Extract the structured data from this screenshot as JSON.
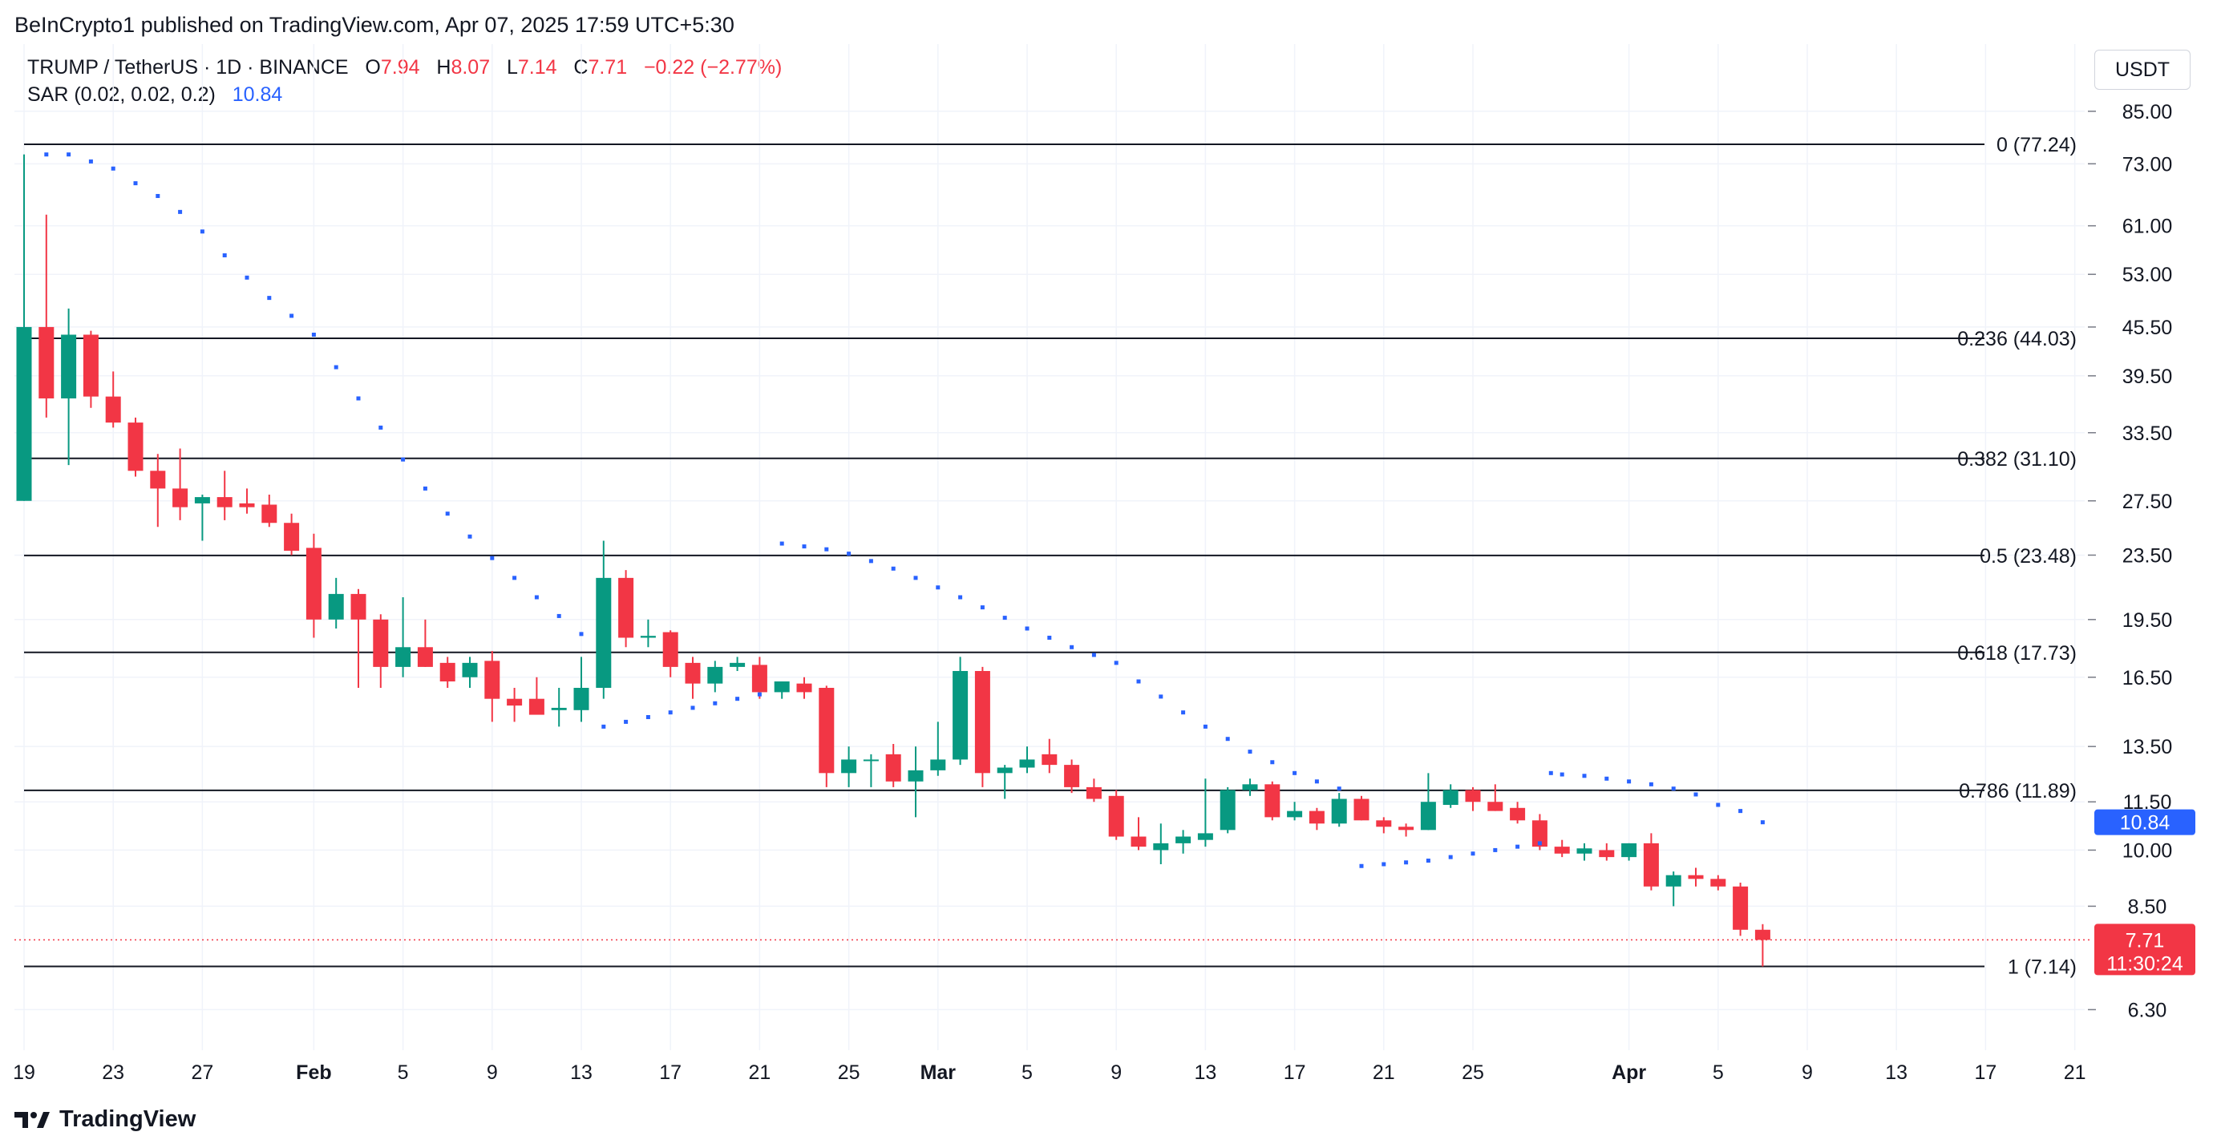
{
  "header": {
    "published": "BeInCrypto1 published on TradingView.com, Apr 07, 2025 17:59 UTC+5:30"
  },
  "legend": {
    "symbol": "TRUMP / TetherUS · 1D · BINANCE",
    "o_label": "O",
    "o_value": "7.94",
    "h_label": "H",
    "h_value": "8.07",
    "l_label": "L",
    "l_value": "7.14",
    "c_label": "C",
    "c_value": "7.71",
    "change": "−0.22 (−2.77%)",
    "sar_label": "SAR (0.02, 0.02, 0.2)",
    "sar_value": "10.84"
  },
  "currency": "USDT",
  "footer": {
    "brand": "TradingView"
  },
  "colors": {
    "up": "#089981",
    "down": "#f23645",
    "sar": "#2962ff",
    "fib_line": "#131722",
    "grid": "#f0f3fa",
    "text": "#131722",
    "last_price_bg": "#f23645",
    "sar_label_bg": "#2962ff"
  },
  "chart_data": {
    "type": "candlestick",
    "title": "TRUMP / TetherUS · 1D · BINANCE",
    "y_scale": "log",
    "ylim": [
      5.9,
      95
    ],
    "grid": true,
    "y_ticks": [
      85.0,
      73.0,
      61.0,
      53.0,
      45.5,
      39.5,
      33.5,
      27.5,
      23.5,
      19.5,
      16.5,
      13.5,
      11.5,
      10.0,
      8.5,
      6.3
    ],
    "y_tick_labels": [
      "85.00",
      "73.00",
      "61.00",
      "53.00",
      "45.50",
      "39.50",
      "33.50",
      "27.50",
      "23.50",
      "19.50",
      "16.50",
      "13.50",
      "11.50",
      "10.00",
      "8.50",
      "6.30"
    ],
    "x_ticks": [
      {
        "i": 0,
        "label": "19"
      },
      {
        "i": 4,
        "label": "23"
      },
      {
        "i": 8,
        "label": "27"
      },
      {
        "i": 13,
        "label": "Feb"
      },
      {
        "i": 17,
        "label": "5"
      },
      {
        "i": 21,
        "label": "9"
      },
      {
        "i": 25,
        "label": "13"
      },
      {
        "i": 29,
        "label": "17"
      },
      {
        "i": 33,
        "label": "21"
      },
      {
        "i": 37,
        "label": "25"
      },
      {
        "i": 41,
        "label": "Mar"
      },
      {
        "i": 45,
        "label": "5"
      },
      {
        "i": 49,
        "label": "9"
      },
      {
        "i": 53,
        "label": "13"
      },
      {
        "i": 57,
        "label": "17"
      },
      {
        "i": 61,
        "label": "21"
      },
      {
        "i": 65,
        "label": "25"
      },
      {
        "i": 72,
        "label": "Apr"
      },
      {
        "i": 76,
        "label": "5"
      },
      {
        "i": 80,
        "label": "9"
      },
      {
        "i": 84,
        "label": "13"
      },
      {
        "i": 88,
        "label": "17"
      },
      {
        "i": 92,
        "label": "21"
      }
    ],
    "candles": [
      {
        "o": 27.5,
        "h": 75.0,
        "l": 27.5,
        "c": 45.5
      },
      {
        "o": 45.5,
        "h": 63.0,
        "l": 35.0,
        "c": 37.0
      },
      {
        "o": 37.0,
        "h": 48.0,
        "l": 30.5,
        "c": 44.5
      },
      {
        "o": 44.5,
        "h": 45.0,
        "l": 36.0,
        "c": 37.2
      },
      {
        "o": 37.2,
        "h": 40.0,
        "l": 34.0,
        "c": 34.5
      },
      {
        "o": 34.5,
        "h": 35.0,
        "l": 29.5,
        "c": 30.0
      },
      {
        "o": 30.0,
        "h": 31.5,
        "l": 25.5,
        "c": 28.5
      },
      {
        "o": 28.5,
        "h": 32.0,
        "l": 26.0,
        "c": 27.0
      },
      {
        "o": 27.3,
        "h": 28.0,
        "l": 24.5,
        "c": 27.8
      },
      {
        "o": 27.8,
        "h": 30.0,
        "l": 26.0,
        "c": 27.0
      },
      {
        "o": 27.3,
        "h": 28.5,
        "l": 26.5,
        "c": 27.0
      },
      {
        "o": 27.2,
        "h": 28.0,
        "l": 25.5,
        "c": 25.8
      },
      {
        "o": 25.8,
        "h": 26.5,
        "l": 23.5,
        "c": 23.8
      },
      {
        "o": 24.0,
        "h": 25.0,
        "l": 18.5,
        "c": 19.5
      },
      {
        "o": 19.5,
        "h": 22.0,
        "l": 19.0,
        "c": 21.0
      },
      {
        "o": 21.0,
        "h": 21.3,
        "l": 16.0,
        "c": 19.5
      },
      {
        "o": 19.5,
        "h": 19.8,
        "l": 16.0,
        "c": 17.0
      },
      {
        "o": 17.0,
        "h": 20.8,
        "l": 16.5,
        "c": 18.0
      },
      {
        "o": 18.0,
        "h": 19.5,
        "l": 17.0,
        "c": 17.0
      },
      {
        "o": 17.2,
        "h": 17.5,
        "l": 16.0,
        "c": 16.3
      },
      {
        "o": 16.5,
        "h": 17.5,
        "l": 16.0,
        "c": 17.2
      },
      {
        "o": 17.3,
        "h": 17.8,
        "l": 14.5,
        "c": 15.5
      },
      {
        "o": 15.5,
        "h": 16.0,
        "l": 14.5,
        "c": 15.2
      },
      {
        "o": 15.5,
        "h": 16.5,
        "l": 15.0,
        "c": 14.8
      },
      {
        "o": 15.0,
        "h": 16.0,
        "l": 14.3,
        "c": 15.1
      },
      {
        "o": 15.0,
        "h": 17.5,
        "l": 14.5,
        "c": 16.0
      },
      {
        "o": 16.0,
        "h": 24.5,
        "l": 15.5,
        "c": 22.0
      },
      {
        "o": 22.0,
        "h": 22.5,
        "l": 18.0,
        "c": 18.5
      },
      {
        "o": 18.5,
        "h": 19.5,
        "l": 18.0,
        "c": 18.6
      },
      {
        "o": 18.8,
        "h": 18.9,
        "l": 16.5,
        "c": 17.0
      },
      {
        "o": 17.2,
        "h": 17.5,
        "l": 15.5,
        "c": 16.2
      },
      {
        "o": 16.2,
        "h": 17.3,
        "l": 15.8,
        "c": 17.0
      },
      {
        "o": 17.0,
        "h": 17.5,
        "l": 16.8,
        "c": 17.2
      },
      {
        "o": 17.1,
        "h": 17.5,
        "l": 15.5,
        "c": 15.8
      },
      {
        "o": 15.8,
        "h": 16.3,
        "l": 15.5,
        "c": 16.3
      },
      {
        "o": 16.2,
        "h": 16.5,
        "l": 15.5,
        "c": 15.8
      },
      {
        "o": 16.0,
        "h": 16.1,
        "l": 12.0,
        "c": 12.5
      },
      {
        "o": 12.5,
        "h": 13.5,
        "l": 12.0,
        "c": 13.0
      },
      {
        "o": 13.0,
        "h": 13.2,
        "l": 12.0,
        "c": 13.0
      },
      {
        "o": 13.2,
        "h": 13.6,
        "l": 12.0,
        "c": 12.2
      },
      {
        "o": 12.2,
        "h": 13.5,
        "l": 11.0,
        "c": 12.6
      },
      {
        "o": 12.6,
        "h": 14.5,
        "l": 12.4,
        "c": 13.0
      },
      {
        "o": 13.0,
        "h": 17.5,
        "l": 12.8,
        "c": 16.8
      },
      {
        "o": 16.8,
        "h": 17.0,
        "l": 12.0,
        "c": 12.5
      },
      {
        "o": 12.5,
        "h": 12.8,
        "l": 11.6,
        "c": 12.7
      },
      {
        "o": 12.7,
        "h": 13.5,
        "l": 12.5,
        "c": 13.0
      },
      {
        "o": 13.2,
        "h": 13.8,
        "l": 12.5,
        "c": 12.8
      },
      {
        "o": 12.8,
        "h": 13.0,
        "l": 11.8,
        "c": 12.0
      },
      {
        "o": 12.0,
        "h": 12.3,
        "l": 11.5,
        "c": 11.6
      },
      {
        "o": 11.7,
        "h": 11.9,
        "l": 10.3,
        "c": 10.4
      },
      {
        "o": 10.4,
        "h": 11.0,
        "l": 10.0,
        "c": 10.1
      },
      {
        "o": 10.0,
        "h": 10.8,
        "l": 9.6,
        "c": 10.2
      },
      {
        "o": 10.2,
        "h": 10.6,
        "l": 9.9,
        "c": 10.4
      },
      {
        "o": 10.3,
        "h": 12.3,
        "l": 10.1,
        "c": 10.5
      },
      {
        "o": 10.6,
        "h": 12.0,
        "l": 10.5,
        "c": 11.9
      },
      {
        "o": 11.9,
        "h": 12.3,
        "l": 11.7,
        "c": 12.1
      },
      {
        "o": 12.1,
        "h": 12.2,
        "l": 10.9,
        "c": 11.0
      },
      {
        "o": 11.0,
        "h": 11.5,
        "l": 10.9,
        "c": 11.2
      },
      {
        "o": 11.2,
        "h": 11.3,
        "l": 10.6,
        "c": 10.8
      },
      {
        "o": 10.8,
        "h": 11.8,
        "l": 10.7,
        "c": 11.6
      },
      {
        "o": 11.6,
        "h": 11.7,
        "l": 10.9,
        "c": 10.9
      },
      {
        "o": 10.9,
        "h": 11.0,
        "l": 10.5,
        "c": 10.7
      },
      {
        "o": 10.7,
        "h": 10.8,
        "l": 10.4,
        "c": 10.6
      },
      {
        "o": 10.6,
        "h": 12.5,
        "l": 10.6,
        "c": 11.5
      },
      {
        "o": 11.4,
        "h": 12.1,
        "l": 11.3,
        "c": 11.9
      },
      {
        "o": 11.9,
        "h": 12.0,
        "l": 11.2,
        "c": 11.5
      },
      {
        "o": 11.5,
        "h": 12.1,
        "l": 11.2,
        "c": 11.2
      },
      {
        "o": 11.3,
        "h": 11.5,
        "l": 10.8,
        "c": 10.9
      },
      {
        "o": 10.9,
        "h": 11.1,
        "l": 10.0,
        "c": 10.1
      },
      {
        "o": 10.1,
        "h": 10.3,
        "l": 9.8,
        "c": 9.9
      },
      {
        "o": 9.9,
        "h": 10.2,
        "l": 9.7,
        "c": 10.05
      },
      {
        "o": 10.0,
        "h": 10.2,
        "l": 9.7,
        "c": 9.8
      },
      {
        "o": 9.8,
        "h": 10.2,
        "l": 9.7,
        "c": 10.2
      },
      {
        "o": 10.2,
        "h": 10.5,
        "l": 8.9,
        "c": 9.0
      },
      {
        "o": 9.0,
        "h": 9.4,
        "l": 8.5,
        "c": 9.3
      },
      {
        "o": 9.3,
        "h": 9.5,
        "l": 9.0,
        "c": 9.2
      },
      {
        "o": 9.2,
        "h": 9.3,
        "l": 8.9,
        "c": 9.0
      },
      {
        "o": 9.0,
        "h": 9.1,
        "l": 7.8,
        "c": 7.94
      },
      {
        "o": 7.94,
        "h": 8.07,
        "l": 7.14,
        "c": 7.71
      }
    ],
    "sar": {
      "name": "SAR (0.02, 0.02, 0.2)",
      "points": [
        {
          "i": 1,
          "v": 75.0
        },
        {
          "i": 2,
          "v": 75.0
        },
        {
          "i": 3,
          "v": 73.5
        },
        {
          "i": 4,
          "v": 72.0
        },
        {
          "i": 5,
          "v": 69.0
        },
        {
          "i": 6,
          "v": 66.5
        },
        {
          "i": 7,
          "v": 63.5
        },
        {
          "i": 8,
          "v": 60.0
        },
        {
          "i": 9,
          "v": 56.0
        },
        {
          "i": 10,
          "v": 52.5
        },
        {
          "i": 11,
          "v": 49.5
        },
        {
          "i": 12,
          "v": 47.0
        },
        {
          "i": 13,
          "v": 44.5
        },
        {
          "i": 14,
          "v": 40.5
        },
        {
          "i": 15,
          "v": 37.0
        },
        {
          "i": 16,
          "v": 34.0
        },
        {
          "i": 17,
          "v": 31.0
        },
        {
          "i": 18,
          "v": 28.5
        },
        {
          "i": 19,
          "v": 26.5
        },
        {
          "i": 20,
          "v": 24.8
        },
        {
          "i": 21,
          "v": 23.3
        },
        {
          "i": 22,
          "v": 22.0
        },
        {
          "i": 23,
          "v": 20.8
        },
        {
          "i": 24,
          "v": 19.7
        },
        {
          "i": 25,
          "v": 18.7
        },
        {
          "i": 26,
          "v": 14.3
        },
        {
          "i": 27,
          "v": 14.5
        },
        {
          "i": 28,
          "v": 14.7
        },
        {
          "i": 29,
          "v": 14.9
        },
        {
          "i": 30,
          "v": 15.1
        },
        {
          "i": 31,
          "v": 15.3
        },
        {
          "i": 32,
          "v": 15.5
        },
        {
          "i": 33,
          "v": 15.7
        },
        {
          "i": 34,
          "v": 24.3
        },
        {
          "i": 35,
          "v": 24.1
        },
        {
          "i": 36,
          "v": 23.9
        },
        {
          "i": 37,
          "v": 23.6
        },
        {
          "i": 38,
          "v": 23.1
        },
        {
          "i": 39,
          "v": 22.6
        },
        {
          "i": 40,
          "v": 22.0
        },
        {
          "i": 41,
          "v": 21.4
        },
        {
          "i": 42,
          "v": 20.8
        },
        {
          "i": 43,
          "v": 20.2
        },
        {
          "i": 44,
          "v": 19.6
        },
        {
          "i": 45,
          "v": 19.0
        },
        {
          "i": 46,
          "v": 18.5
        },
        {
          "i": 47,
          "v": 18.0
        },
        {
          "i": 48,
          "v": 17.6
        },
        {
          "i": 49,
          "v": 17.2
        },
        {
          "i": 50,
          "v": 16.3
        },
        {
          "i": 51,
          "v": 15.6
        },
        {
          "i": 52,
          "v": 14.9
        },
        {
          "i": 53,
          "v": 14.3
        },
        {
          "i": 54,
          "v": 13.8
        },
        {
          "i": 55,
          "v": 13.3
        },
        {
          "i": 56,
          "v": 12.9
        },
        {
          "i": 57,
          "v": 12.5
        },
        {
          "i": 58,
          "v": 12.2
        },
        {
          "i": 59,
          "v": 11.95
        },
        {
          "i": 60,
          "v": 9.55
        },
        {
          "i": 61,
          "v": 9.6
        },
        {
          "i": 62,
          "v": 9.65
        },
        {
          "i": 63,
          "v": 9.7
        },
        {
          "i": 64,
          "v": 9.8
        },
        {
          "i": 65,
          "v": 9.9
        },
        {
          "i": 66,
          "v": 10.0
        },
        {
          "i": 67,
          "v": 10.1
        },
        {
          "i": 68,
          "v": 10.2
        },
        {
          "i": 68.5,
          "v": 12.5
        },
        {
          "i": 69,
          "v": 12.45
        },
        {
          "i": 70,
          "v": 12.4
        },
        {
          "i": 71,
          "v": 12.3
        },
        {
          "i": 72,
          "v": 12.2
        },
        {
          "i": 73,
          "v": 12.1
        },
        {
          "i": 74,
          "v": 11.95
        },
        {
          "i": 75,
          "v": 11.75
        },
        {
          "i": 76,
          "v": 11.4
        },
        {
          "i": 77,
          "v": 11.2
        },
        {
          "i": 78,
          "v": 10.84
        }
      ]
    },
    "fib_levels": [
      {
        "value": 77.24,
        "label": "0 (77.24)"
      },
      {
        "value": 44.03,
        "label": "0.236 (44.03)"
      },
      {
        "value": 31.1,
        "label": "0.382 (31.10)"
      },
      {
        "value": 23.48,
        "label": "0.5 (23.48)"
      },
      {
        "value": 17.73,
        "label": "0.618 (17.73)"
      },
      {
        "value": 11.89,
        "label": "0.786 (11.89)"
      },
      {
        "value": 7.14,
        "label": "1 (7.14)"
      }
    ],
    "last_price": {
      "value": 7.71,
      "label": "7.71",
      "countdown": "11:30:24"
    },
    "sar_last": {
      "value": 10.84,
      "label": "10.84"
    }
  }
}
